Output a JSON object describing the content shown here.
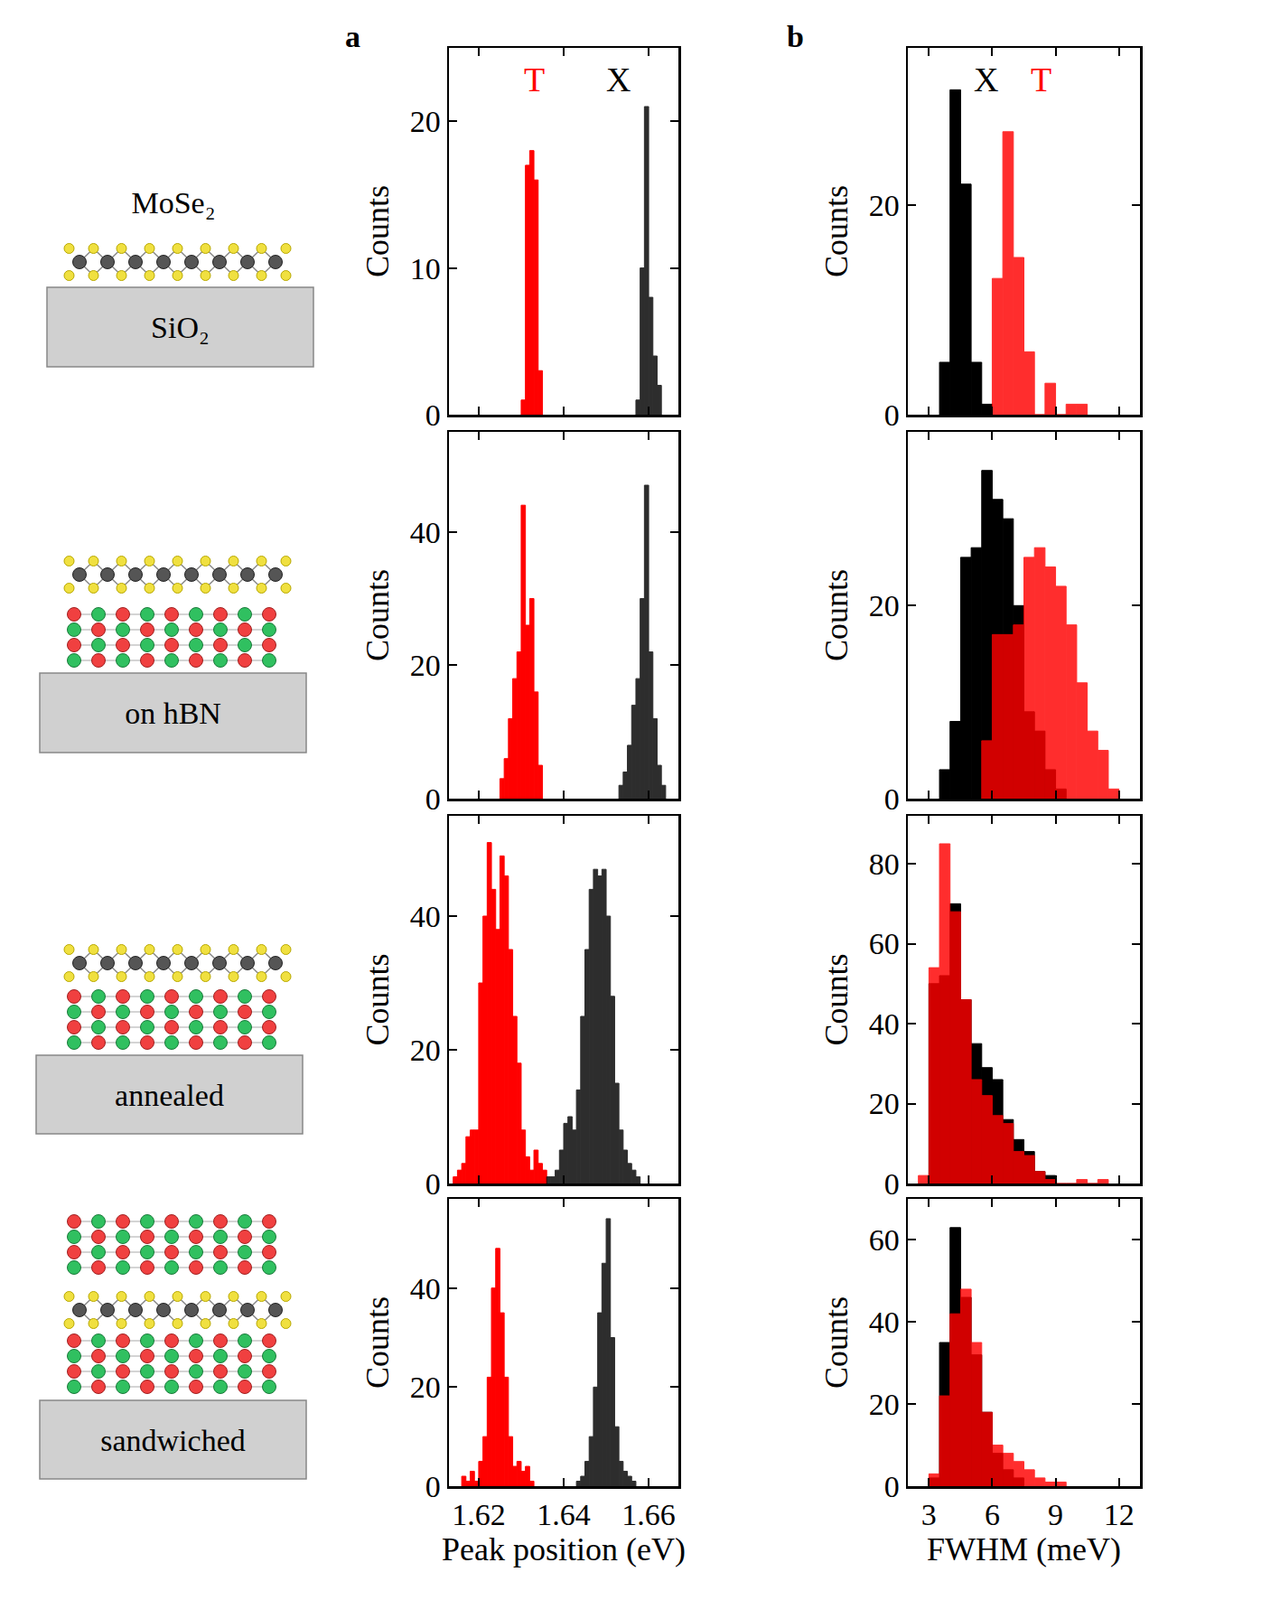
{
  "panel_labels": [
    "a",
    "b"
  ],
  "schematics": {
    "material_label": "MoSe₂",
    "substrate_labels": [
      "SiO₂",
      "on hBN",
      "annealed",
      "sandwiched"
    ]
  },
  "chart_data": [
    {
      "type": "histogram",
      "y_label": "Counts",
      "xlim": [
        1.613,
        1.667
      ],
      "xticks": [
        1.62,
        1.64,
        1.66
      ],
      "ylim": [
        0,
        25
      ],
      "yticks": [
        0,
        10,
        20
      ],
      "tick_labels": "y",
      "annotations": [
        {
          "text": "T",
          "x": 1.633,
          "color": "#ff0000"
        },
        {
          "text": "X",
          "x": 1.6528,
          "color": "#000000"
        }
      ],
      "series": [
        {
          "color": "#ff0000",
          "bins": [
            1.63,
            1.631,
            1.632,
            1.633,
            1.634,
            1.635
          ],
          "values": [
            1,
            17,
            18,
            16,
            3
          ]
        },
        {
          "color": "#000000",
          "bins": [
            1.657,
            1.658,
            1.659,
            1.66,
            1.661,
            1.662,
            1.663
          ],
          "values": [
            1,
            10,
            21,
            8,
            4,
            2
          ]
        }
      ]
    },
    {
      "type": "histogram",
      "y_label": "Counts",
      "xlim": [
        2,
        13
      ],
      "xticks": [
        3,
        6,
        9,
        12
      ],
      "ylim": [
        0,
        35
      ],
      "yticks": [
        0,
        20
      ],
      "tick_labels": "y",
      "annotations": [
        {
          "text": "X",
          "x": 5.7,
          "color": "#000000"
        },
        {
          "text": "T",
          "x": 8.3,
          "color": "#ff0000"
        }
      ],
      "series": [
        {
          "color": "#000000",
          "bins": [
            3.5,
            4,
            4.5,
            5,
            5.5,
            6
          ],
          "values": [
            5,
            31,
            22,
            5,
            1
          ]
        },
        {
          "color": "#ff0000",
          "bins": [
            6,
            6.5,
            7,
            7.5,
            8,
            8.5,
            9,
            9.5,
            10,
            10.5
          ],
          "values": [
            13,
            27,
            15,
            6,
            0,
            3,
            0,
            1,
            1
          ]
        }
      ]
    },
    {
      "type": "histogram",
      "y_label": "Counts",
      "xlim": [
        1.613,
        1.667
      ],
      "xticks": [
        1.62,
        1.64,
        1.66
      ],
      "ylim": [
        0,
        55
      ],
      "yticks": [
        0,
        20,
        40
      ],
      "tick_labels": "y",
      "series": [
        {
          "color": "#ff0000",
          "bins": [
            1.625,
            1.626,
            1.627,
            1.628,
            1.629,
            1.63,
            1.631,
            1.632,
            1.633,
            1.634,
            1.635
          ],
          "values": [
            3,
            6,
            12,
            18,
            22,
            44,
            26,
            30,
            16,
            5
          ]
        },
        {
          "color": "#000000",
          "bins": [
            1.653,
            1.654,
            1.655,
            1.656,
            1.657,
            1.658,
            1.659,
            1.66,
            1.661,
            1.662,
            1.663,
            1.664
          ],
          "values": [
            2,
            4,
            8,
            14,
            18,
            30,
            47,
            22,
            12,
            5,
            2
          ]
        }
      ]
    },
    {
      "type": "histogram",
      "y_label": "Counts",
      "xlim": [
        2,
        13
      ],
      "xticks": [
        3,
        6,
        9,
        12
      ],
      "ylim": [
        0,
        38
      ],
      "yticks": [
        0,
        20
      ],
      "tick_labels": "y",
      "series": [
        {
          "color": "#000000",
          "bins": [
            3.5,
            4,
            4.5,
            5,
            5.5,
            6,
            6.5,
            7,
            7.5,
            8,
            8.5,
            9,
            9.5
          ],
          "values": [
            3,
            8,
            25,
            26,
            34,
            31,
            29,
            20,
            9,
            7,
            3,
            1
          ]
        },
        {
          "color": "#ff0000",
          "bins": [
            5.5,
            6,
            6.5,
            7,
            7.5,
            8,
            8.5,
            9,
            9.5,
            10,
            10.5,
            11,
            11.5,
            12
          ],
          "values": [
            6,
            17,
            17,
            18,
            25,
            26,
            24,
            22,
            18,
            12,
            7,
            5,
            1
          ]
        }
      ]
    },
    {
      "type": "histogram",
      "y_label": "Counts",
      "xlim": [
        1.613,
        1.667
      ],
      "xticks": [
        1.62,
        1.64,
        1.66
      ],
      "ylim": [
        0,
        55
      ],
      "yticks": [
        0,
        20,
        40
      ],
      "tick_labels": "y",
      "series": [
        {
          "color": "#ff0000",
          "bins": [
            1.614,
            1.615,
            1.616,
            1.617,
            1.618,
            1.619,
            1.62,
            1.621,
            1.622,
            1.623,
            1.624,
            1.625,
            1.626,
            1.627,
            1.628,
            1.629,
            1.63,
            1.631,
            1.632,
            1.633,
            1.634,
            1.635,
            1.636
          ],
          "values": [
            1,
            2,
            3,
            7,
            8,
            8,
            30,
            40,
            51,
            44,
            38,
            49,
            46,
            35,
            25,
            18,
            8,
            4,
            2,
            5,
            3,
            2
          ]
        },
        {
          "color": "#000000",
          "bins": [
            1.636,
            1.637,
            1.638,
            1.639,
            1.64,
            1.641,
            1.642,
            1.643,
            1.644,
            1.645,
            1.646,
            1.647,
            1.648,
            1.649,
            1.65,
            1.651,
            1.652,
            1.653,
            1.654,
            1.655,
            1.656,
            1.657,
            1.658
          ],
          "values": [
            1,
            1,
            2,
            5,
            9,
            10,
            8,
            14,
            25,
            35,
            44,
            47,
            46,
            47,
            40,
            28,
            15,
            8,
            5,
            3,
            2,
            1
          ]
        }
      ]
    },
    {
      "type": "histogram",
      "y_label": "Counts",
      "xlim": [
        2,
        13
      ],
      "xticks": [
        3,
        6,
        9,
        12
      ],
      "ylim": [
        0,
        92
      ],
      "yticks": [
        0,
        20,
        40,
        60,
        80
      ],
      "tick_labels": "y",
      "series": [
        {
          "color": "#000000",
          "bins": [
            3,
            3.5,
            4,
            4.5,
            5,
            5.5,
            6,
            6.5,
            7,
            7.5,
            8,
            8.5,
            9
          ],
          "values": [
            50,
            52,
            70,
            46,
            35,
            29,
            26,
            16,
            11,
            8,
            3,
            2
          ]
        },
        {
          "color": "#ff0000",
          "bins": [
            2.5,
            3,
            3.5,
            4,
            4.5,
            5,
            5.5,
            6,
            6.5,
            7,
            7.5,
            8,
            8.5,
            9,
            9.5,
            10,
            10.5,
            11,
            11.5
          ],
          "values": [
            2,
            54,
            85,
            68,
            46,
            26,
            22,
            17,
            15,
            8,
            7,
            3,
            1,
            0,
            0,
            1,
            0,
            1
          ]
        }
      ]
    },
    {
      "type": "histogram",
      "x_label": "Peak position (eV)",
      "y_label": "Counts",
      "xlim": [
        1.613,
        1.667
      ],
      "xticks": [
        1.62,
        1.64,
        1.66
      ],
      "ylim": [
        0,
        58
      ],
      "yticks": [
        0,
        20,
        40
      ],
      "series": [
        {
          "color": "#ff0000",
          "bins": [
            1.616,
            1.617,
            1.618,
            1.619,
            1.62,
            1.621,
            1.622,
            1.623,
            1.624,
            1.625,
            1.626,
            1.627,
            1.628,
            1.629,
            1.63,
            1.631,
            1.632,
            1.633
          ],
          "values": [
            2,
            1,
            3,
            1,
            5,
            10,
            22,
            40,
            48,
            35,
            22,
            10,
            4,
            5,
            3,
            4,
            1
          ]
        },
        {
          "color": "#000000",
          "bins": [
            1.643,
            1.644,
            1.645,
            1.646,
            1.647,
            1.648,
            1.649,
            1.65,
            1.651,
            1.652,
            1.653,
            1.654,
            1.655,
            1.656,
            1.657
          ],
          "values": [
            1,
            2,
            5,
            10,
            20,
            35,
            45,
            54,
            30,
            12,
            5,
            3,
            2,
            1
          ]
        }
      ]
    },
    {
      "type": "histogram",
      "x_label": "FWHM (meV)",
      "y_label": "Counts",
      "xlim": [
        2,
        13
      ],
      "xticks": [
        3,
        6,
        9,
        12
      ],
      "ylim": [
        0,
        70
      ],
      "yticks": [
        0,
        20,
        40,
        60
      ],
      "series": [
        {
          "color": "#000000",
          "bins": [
            3,
            3.5,
            4,
            4.5,
            5,
            5.5,
            6,
            6.5,
            7,
            7.5
          ],
          "values": [
            2,
            35,
            63,
            46,
            32,
            18,
            8,
            4,
            2
          ]
        },
        {
          "color": "#ff0000",
          "bins": [
            3,
            3.5,
            4,
            4.5,
            5,
            5.5,
            6,
            6.5,
            7,
            7.5,
            8,
            8.5,
            9,
            9.5
          ],
          "values": [
            3,
            22,
            42,
            48,
            35,
            18,
            10,
            8,
            6,
            4,
            2,
            1,
            1
          ]
        }
      ]
    }
  ]
}
